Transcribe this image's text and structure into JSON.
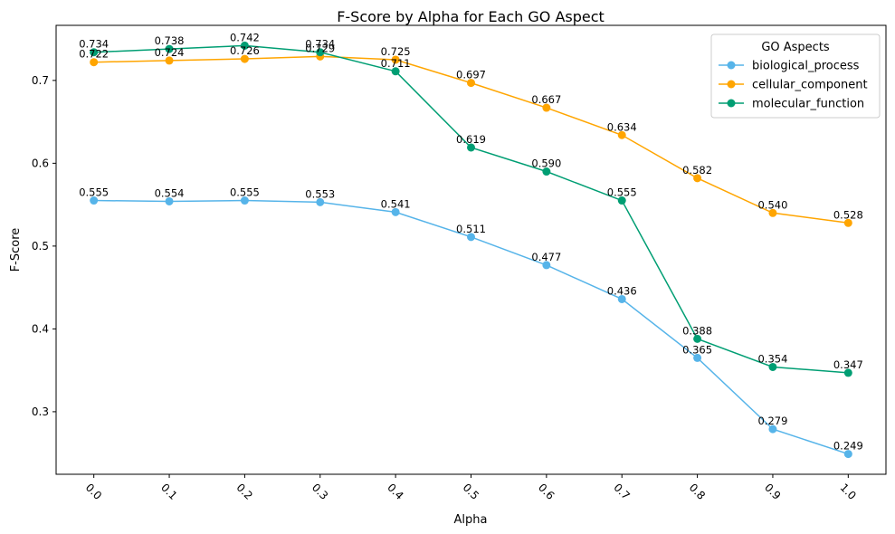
{
  "chart_data": {
    "type": "line",
    "title": "F-Score by Alpha for Each GO Aspect",
    "xlabel": "Alpha",
    "ylabel": "F-Score",
    "x": [
      0.0,
      0.1,
      0.2,
      0.3,
      0.4,
      0.5,
      0.6,
      0.7,
      0.8,
      0.9,
      1.0
    ],
    "x_tick_labels": [
      "0.0",
      "0.1",
      "0.2",
      "0.3",
      "0.4",
      "0.5",
      "0.6",
      "0.7",
      "0.8",
      "0.9",
      "1.0"
    ],
    "y_ticks": [
      0.3,
      0.4,
      0.5,
      0.6,
      0.7
    ],
    "y_tick_labels": [
      "0.3",
      "0.4",
      "0.5",
      "0.6",
      "0.7"
    ],
    "xlim": [
      -0.05,
      1.05
    ],
    "ylim": [
      0.2245,
      0.7665
    ],
    "grid": false,
    "legend": {
      "title": "GO Aspects",
      "placement": "top-right"
    },
    "series": [
      {
        "name": "biological_process",
        "color": "#56B4E9",
        "values": [
          0.555,
          0.554,
          0.555,
          0.553,
          0.541,
          0.511,
          0.477,
          0.436,
          0.365,
          0.279,
          0.249
        ],
        "labels": [
          "0.555",
          "0.554",
          "0.555",
          "0.553",
          "0.541",
          "0.511",
          "0.477",
          "0.436",
          "0.365",
          "0.279",
          "0.249"
        ]
      },
      {
        "name": "cellular_component",
        "color": "#FFA500",
        "values": [
          0.722,
          0.724,
          0.726,
          0.729,
          0.725,
          0.697,
          0.667,
          0.634,
          0.582,
          0.54,
          0.528
        ],
        "labels": [
          "0.722",
          "0.724",
          "0.726",
          "0.729",
          "0.725",
          "0.697",
          "0.667",
          "0.634",
          "0.582",
          "0.540",
          "0.528"
        ]
      },
      {
        "name": "molecular_function",
        "color": "#009E73",
        "values": [
          0.734,
          0.738,
          0.742,
          0.734,
          0.711,
          0.619,
          0.59,
          0.555,
          0.388,
          0.354,
          0.347
        ],
        "labels": [
          "0.734",
          "0.738",
          "0.742",
          "0.734",
          "0.711",
          "0.619",
          "0.590",
          "0.555",
          "0.388",
          "0.354",
          "0.347"
        ]
      }
    ]
  }
}
